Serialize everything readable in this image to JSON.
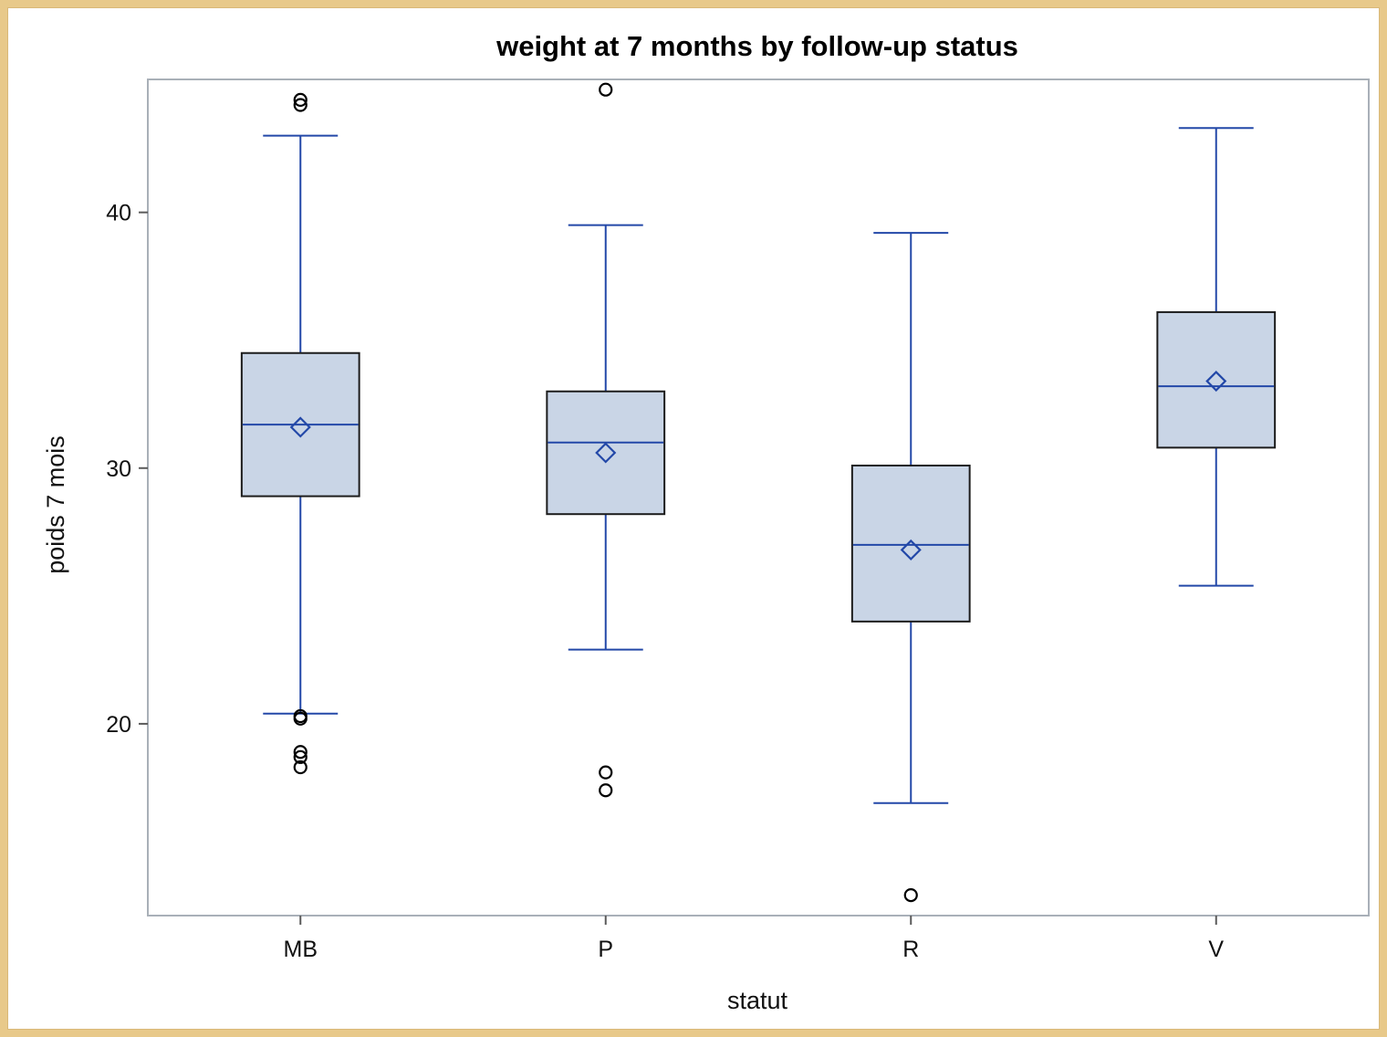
{
  "chart_data": {
    "type": "box",
    "title": "weight at 7 months by follow-up status",
    "xlabel": "statut",
    "ylabel": "poids 7 mois",
    "categories": [
      "MB",
      "P",
      "R",
      "V"
    ],
    "yticks": [
      20,
      30,
      40
    ],
    "ylim": [
      12.5,
      45.2
    ],
    "grid": false,
    "colors": {
      "box_fill": "#c9d5e6",
      "box_edge": "#1c1c1c",
      "whisker": "#2348a8",
      "median": "#2348a8",
      "mean_marker": "#2348a8",
      "outlier": "#000000",
      "plot_border": "#a9b0b8"
    },
    "boxes": [
      {
        "category": "MB",
        "min": 20.4,
        "q1": 28.9,
        "median": 31.7,
        "q3": 34.5,
        "max": 43.0,
        "mean": 31.6,
        "outliers": [
          44.2,
          44.4,
          20.2,
          20.3,
          18.7,
          18.9,
          18.3
        ]
      },
      {
        "category": "P",
        "min": 22.9,
        "q1": 28.2,
        "median": 31.0,
        "q3": 33.0,
        "max": 39.5,
        "mean": 30.6,
        "outliers": [
          44.8,
          18.1,
          17.4
        ]
      },
      {
        "category": "R",
        "min": 16.9,
        "q1": 24.0,
        "median": 27.0,
        "q3": 30.1,
        "max": 39.2,
        "mean": 26.8,
        "outliers": [
          13.3
        ]
      },
      {
        "category": "V",
        "min": 25.4,
        "q1": 30.8,
        "median": 33.2,
        "q3": 36.1,
        "max": 43.3,
        "mean": 33.4,
        "outliers": []
      }
    ]
  }
}
